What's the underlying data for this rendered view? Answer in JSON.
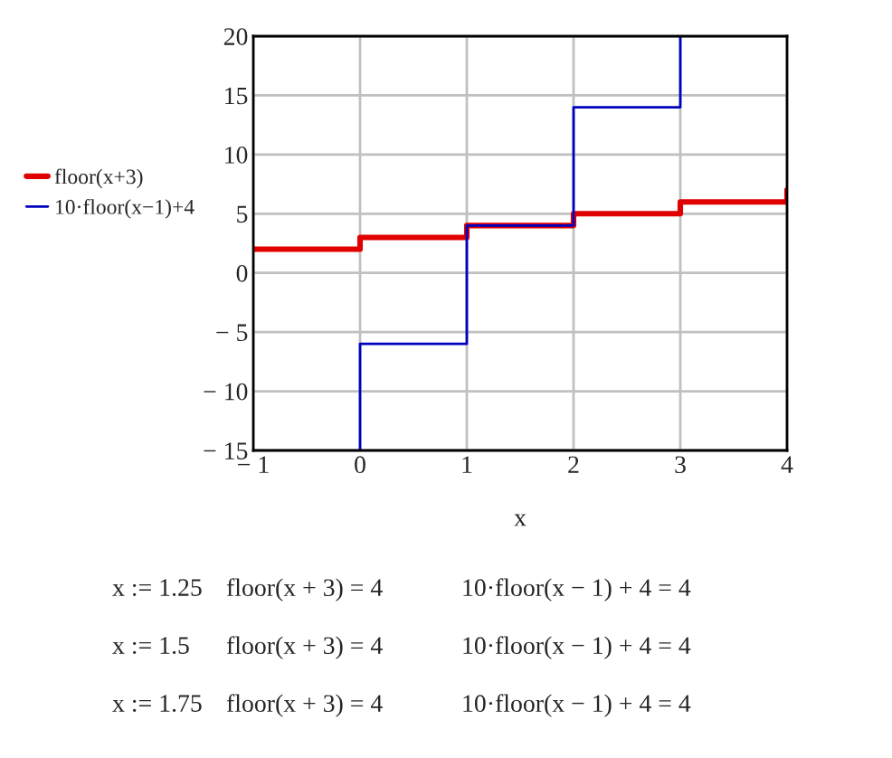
{
  "chart_data": {
    "type": "step",
    "xlabel": "x",
    "series": [
      {
        "name": "floor(x+3)",
        "color": "#e00000",
        "x": [
          -1,
          0,
          1,
          2,
          3,
          4
        ],
        "values": [
          2,
          3,
          4,
          5,
          6,
          7
        ]
      },
      {
        "name": "10·floor(x−1)+4",
        "color": "#0000c0",
        "x": [
          0,
          0,
          1,
          2,
          3
        ],
        "values": [
          -15,
          -6,
          4,
          14,
          20
        ]
      }
    ],
    "xlim": [
      -1,
      4
    ],
    "ylim": [
      -15,
      20
    ],
    "xticks": [
      {
        "value": -1,
        "label": "− 1"
      },
      0,
      1,
      2,
      3,
      4
    ],
    "yticks": [
      {
        "value": -15,
        "label": "− 15"
      },
      {
        "value": -10,
        "label": "− 10"
      },
      {
        "value": -5,
        "label": "− 5"
      },
      0,
      5,
      10,
      15,
      20
    ],
    "grid": true,
    "legend": "left",
    "annotations": [
      "x := 1.25",
      "floor(x + 3) = 4",
      "10·floor(x − 1) + 4 = 4",
      "x := 1.5",
      "floor(x + 3) = 4",
      "10·floor(x − 1) + 4 = 4",
      "x := 1.75",
      "floor(x + 3) = 4",
      "10·floor(x − 1) + 4 = 4"
    ]
  }
}
